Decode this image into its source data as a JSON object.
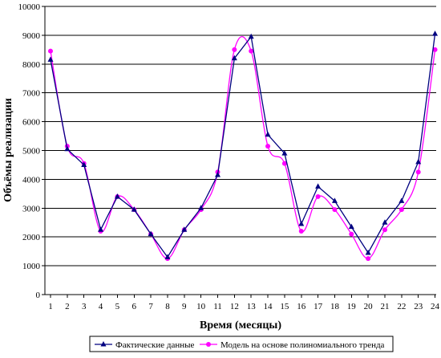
{
  "chart_data": {
    "type": "line",
    "xlabel": "Время (месяцы)",
    "ylabel": "Объёмы реализации",
    "x": [
      1,
      2,
      3,
      4,
      5,
      6,
      7,
      8,
      9,
      10,
      11,
      12,
      13,
      14,
      15,
      16,
      17,
      18,
      19,
      20,
      21,
      22,
      23,
      24
    ],
    "xlim": [
      1,
      24
    ],
    "ylim": [
      0,
      10000
    ],
    "yticks": [
      0,
      1000,
      2000,
      3000,
      4000,
      5000,
      6000,
      7000,
      8000,
      9000,
      10000
    ],
    "grid": true,
    "legend_position": "bottom",
    "series": [
      {
        "name": "Фактические данные",
        "color": "#000080",
        "marker": "triangle",
        "values": [
          8150,
          5050,
          4500,
          2250,
          3400,
          2950,
          2100,
          1300,
          2250,
          3000,
          4150,
          8200,
          8950,
          5550,
          4900,
          2450,
          3750,
          3250,
          2350,
          1450,
          2500,
          3250,
          4600,
          9050
        ]
      },
      {
        "name": "Модель на основе полиномиального тренда",
        "color": "#ff00ff",
        "marker": "circle",
        "values": [
          8450,
          5150,
          4550,
          2200,
          3400,
          2950,
          2100,
          1250,
          2250,
          2950,
          4250,
          8500,
          8450,
          5150,
          4550,
          2200,
          3400,
          2950,
          2100,
          1250,
          2250,
          2950,
          4250,
          8500
        ]
      }
    ]
  }
}
